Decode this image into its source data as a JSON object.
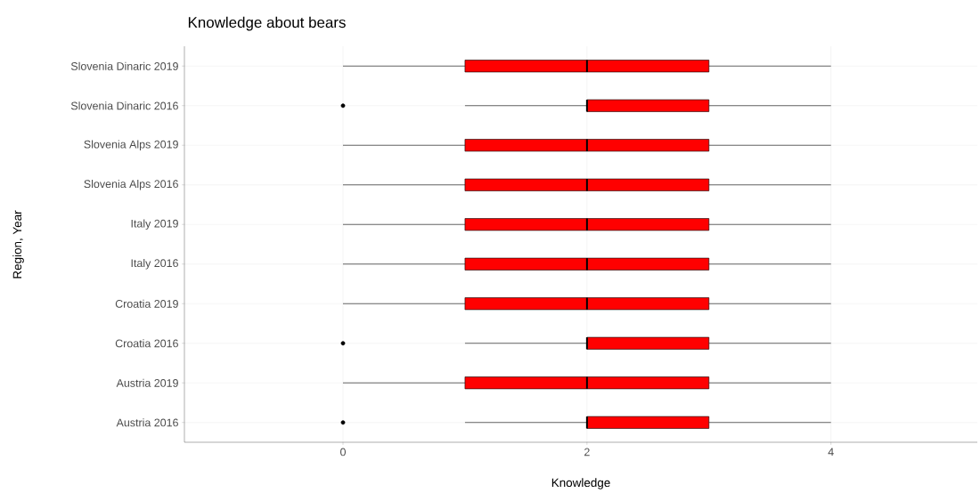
{
  "chart_data": {
    "type": "box",
    "orientation": "horizontal",
    "title": "Knowledge about bears",
    "xlabel": "Knowledge",
    "ylabel": "Region, Year",
    "categories": [
      "Slovenia Dinaric 2019",
      "Slovenia Dinaric 2016",
      "Slovenia Alps 2019",
      "Slovenia Alps 2016",
      "Italy 2019",
      "Italy 2016",
      "Croatia 2019",
      "Croatia 2016",
      "Austria 2019",
      "Austria 2016"
    ],
    "boxes": [
      {
        "low": 0,
        "q1": 1,
        "median": 2,
        "q3": 3,
        "high": 4
      },
      {
        "low": 1,
        "q1": 2,
        "median": 2,
        "q3": 3,
        "high": 4,
        "outliers": [
          0
        ]
      },
      {
        "low": 0,
        "q1": 1,
        "median": 2,
        "q3": 3,
        "high": 4
      },
      {
        "low": 0,
        "q1": 1,
        "median": 2,
        "q3": 3,
        "high": 4
      },
      {
        "low": 0,
        "q1": 1,
        "median": 2,
        "q3": 3,
        "high": 4
      },
      {
        "low": 0,
        "q1": 1,
        "median": 2,
        "q3": 3,
        "high": 4
      },
      {
        "low": 0,
        "q1": 1,
        "median": 2,
        "q3": 3,
        "high": 4
      },
      {
        "low": 1,
        "q1": 2,
        "median": 2,
        "q3": 3,
        "high": 4,
        "outliers": [
          0
        ]
      },
      {
        "low": 0,
        "q1": 1,
        "median": 2,
        "q3": 3,
        "high": 4
      },
      {
        "low": 1,
        "q1": 2,
        "median": 2,
        "q3": 3,
        "high": 4,
        "outliers": [
          0
        ]
      }
    ],
    "color": "#ff0000",
    "xlim": [
      -1.3,
      5.2
    ],
    "xticks": [
      0,
      2,
      4
    ],
    "grid": true
  }
}
